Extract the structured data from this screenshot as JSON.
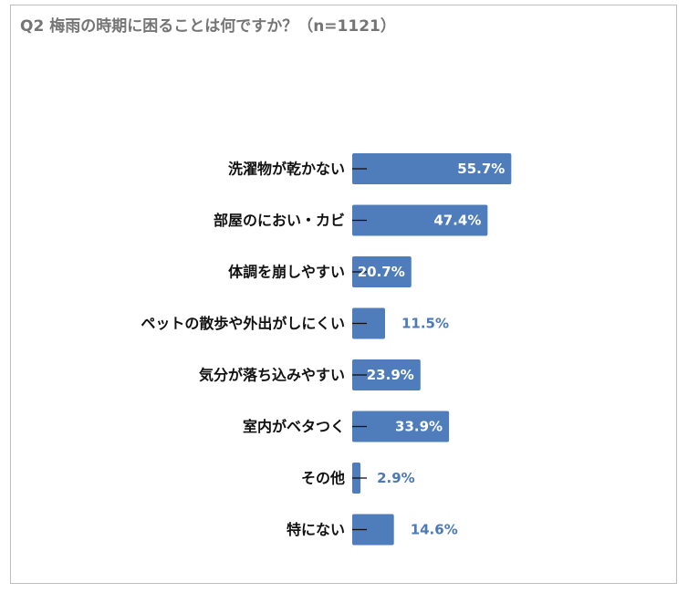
{
  "title": "Q2 梅雨の時期に困ることは何ですか？（n=1121）",
  "colors": {
    "bar": "#4f7dbb",
    "inside_label": "#ffffff",
    "outside_label": "#4a7ab8",
    "axis": "#111111"
  },
  "chart_data": {
    "type": "bar",
    "orientation": "horizontal",
    "title": "Q2 梅雨の時期に困ることは何ですか？（n=1121）",
    "categories": [
      "洗濯物が乾かない",
      "部屋のにおい・カビ",
      "体調を崩しやすい",
      "ペットの散歩や外出がしにくい",
      "気分が落ち込みやすい",
      "室内がベタつく",
      "その他",
      "特にない"
    ],
    "values": [
      55.7,
      47.4,
      20.7,
      11.5,
      23.9,
      33.9,
      2.9,
      14.6
    ],
    "value_labels": [
      "55.7%",
      "47.4%",
      "20.7%",
      "11.5%",
      "23.9%",
      "33.9%",
      "2.9%",
      "14.6%"
    ],
    "unit": "%",
    "xlim": [
      0,
      100
    ],
    "grid": false,
    "legend": "none"
  }
}
